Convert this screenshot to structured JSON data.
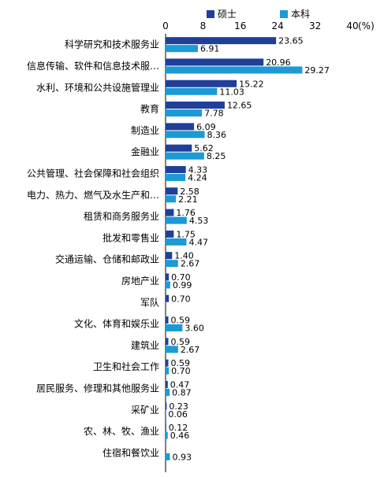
{
  "chart_data": {
    "type": "bar",
    "orientation": "horizontal",
    "unit": "(%)",
    "xlim": [
      0,
      40
    ],
    "xticks": [
      0,
      8,
      16,
      24,
      32,
      40
    ],
    "legend_position": "top",
    "categories": [
      "科学研究和技术服务业",
      "信息传输、软件和信息技术服…",
      "水利、环境和公共设施管理业",
      "教育",
      "制造业",
      "金融业",
      "公共管理、社会保障和社会组织",
      "电力、热力、燃气及水生产和…",
      "租赁和商务服务业",
      "批发和零售业",
      "交通运输、仓储和邮政业",
      "房地产业",
      "军队",
      "文化、体育和娱乐业",
      "建筑业",
      "卫生和社会工作",
      "居民服务、修理和其他服务业",
      "采矿业",
      "农、林、牧、渔业",
      "住宿和餐饮业"
    ],
    "series": [
      {
        "name": "硕士",
        "color": "#1f3f99",
        "values": [
          23.65,
          20.96,
          15.22,
          12.65,
          6.09,
          5.62,
          4.33,
          2.58,
          1.76,
          1.75,
          1.4,
          0.7,
          0.7,
          0.59,
          0.59,
          0.59,
          0.47,
          0.23,
          0.12,
          null
        ],
        "labels": [
          "23.65",
          "20.96",
          "15.22",
          "12.65",
          "6.09",
          "5.62",
          "4.33",
          "2.58",
          "1.76",
          "1.75",
          "1.40",
          "0.70",
          "0.70",
          "0.59",
          "0.59",
          "0.59",
          "0.47",
          "0.23",
          "0.12",
          ""
        ]
      },
      {
        "name": "本科",
        "color": "#1b9ad6",
        "values": [
          6.91,
          29.27,
          11.03,
          7.78,
          8.36,
          8.25,
          4.24,
          2.21,
          4.53,
          4.47,
          2.67,
          0.99,
          null,
          3.6,
          2.67,
          0.7,
          0.87,
          0.06,
          0.46,
          0.93
        ],
        "labels": [
          "6.91",
          "29.27",
          "11.03",
          "7.78",
          "8.36",
          "8.25",
          "4.24",
          "2.21",
          "4.53",
          "4.47",
          "2.67",
          "0.99",
          "",
          "3.60",
          "2.67",
          "0.70",
          "0.87",
          "0.06",
          "0.46",
          "0.93"
        ]
      }
    ]
  }
}
